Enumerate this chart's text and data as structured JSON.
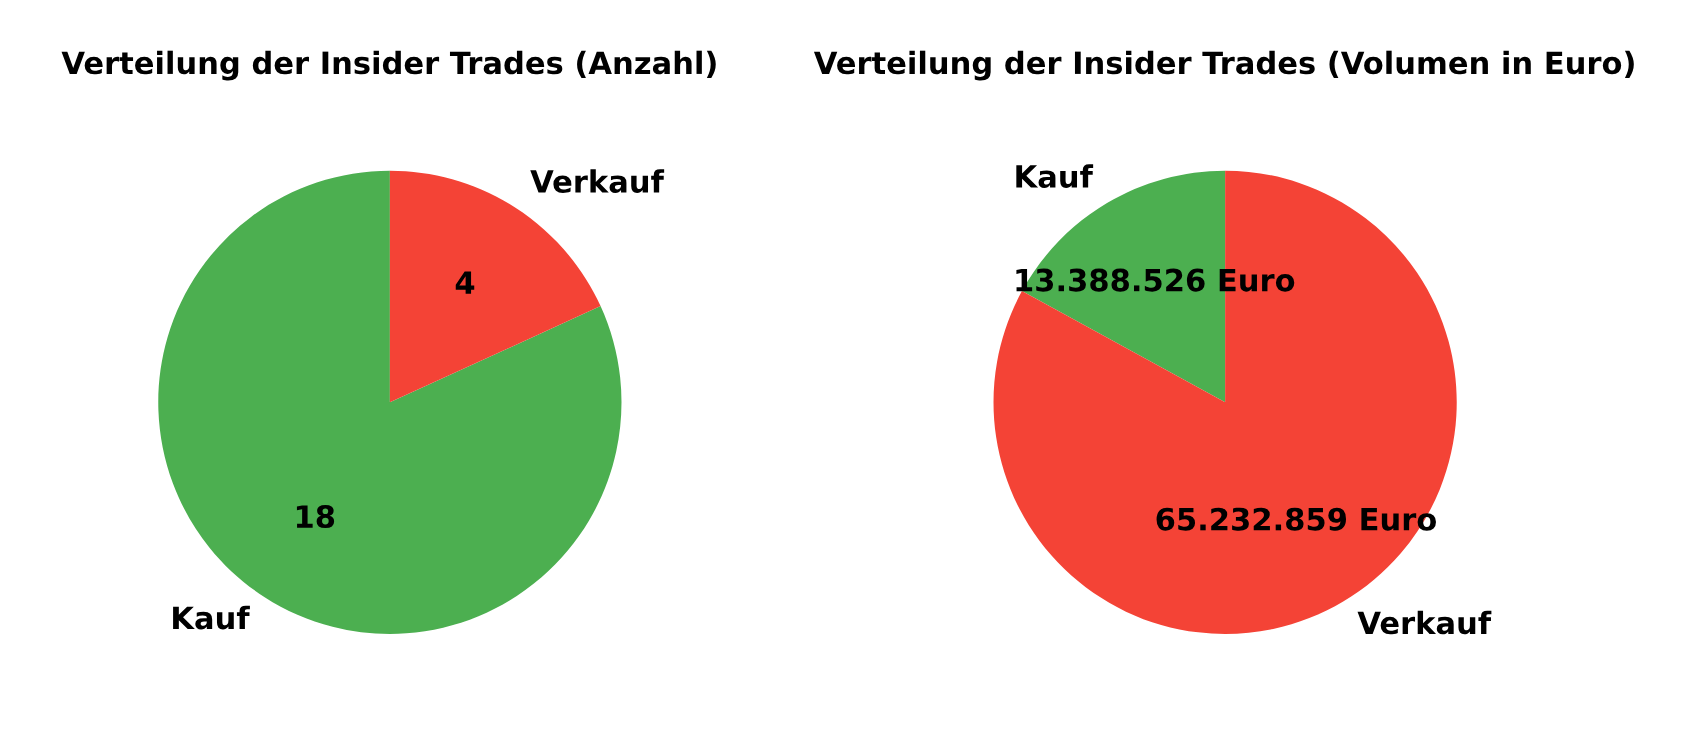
{
  "chart_data": [
    {
      "type": "pie",
      "title": "Verteilung der Insider Trades (Anzahl)",
      "categories": [
        "Kauf",
        "Verkauf"
      ],
      "values": [
        18,
        4
      ],
      "colors": [
        "#4caf50",
        "#f44336"
      ],
      "value_labels": [
        "18",
        "4"
      ]
    },
    {
      "type": "pie",
      "title": "Verteilung der Insider Trades (Volumen in Euro)",
      "categories": [
        "Kauf",
        "Verkauf"
      ],
      "values": [
        13388526,
        65232859
      ],
      "colors": [
        "#4caf50",
        "#f44336"
      ],
      "value_labels": [
        "13.388.526 Euro",
        "65.232.859 Euro"
      ]
    }
  ]
}
